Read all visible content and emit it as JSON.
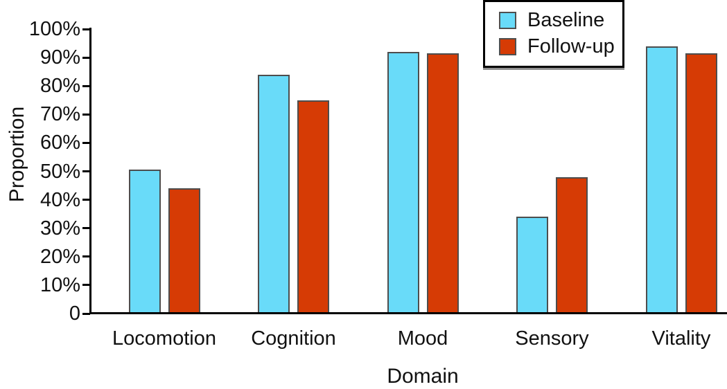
{
  "chart_data": {
    "type": "bar",
    "title": "",
    "xlabel": "Domain",
    "ylabel": "Proportion",
    "categories": [
      "Locomotion",
      "Cognition",
      "Mood",
      "Sensory",
      "Vitality"
    ],
    "series": [
      {
        "name": "Baseline",
        "color": "#69DBF9",
        "values": [
          50.5,
          84,
          92,
          34,
          94
        ]
      },
      {
        "name": "Follow-up",
        "color": "#D63B05",
        "values": [
          44,
          75,
          91.5,
          48,
          91.5
        ]
      }
    ],
    "ylim": [
      0,
      100
    ],
    "ytick_labels": [
      "0",
      "10%",
      "20%",
      "30%",
      "40%",
      "50%",
      "60%",
      "70%",
      "80%",
      "90%",
      "100%"
    ],
    "grid": false,
    "legend_position": "top-right",
    "colors": {
      "bar_edge": "#4d4d4d",
      "axis": "#000000",
      "legend_border": "#000000",
      "legend_shadow": "#8f8f8f",
      "background": "#ffffff"
    }
  }
}
